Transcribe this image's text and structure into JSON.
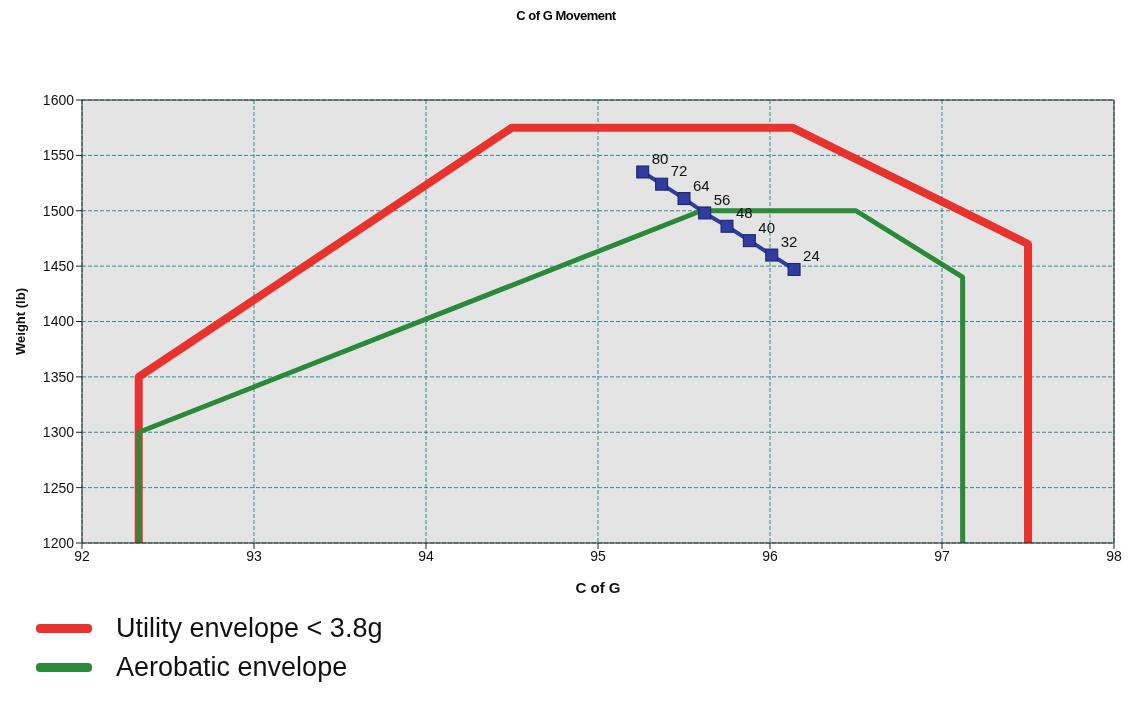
{
  "chart_data": {
    "type": "line",
    "title": "C of G Movement",
    "xlabel": "C of G",
    "ylabel": "Weight (lb)",
    "xlim": [
      92,
      98
    ],
    "xticks": [
      92,
      93,
      94,
      95,
      96,
      97,
      98
    ],
    "ylim": [
      1200,
      1600
    ],
    "yticks": [
      1200,
      1250,
      1300,
      1350,
      1400,
      1450,
      1500,
      1550,
      1600
    ],
    "grid": true,
    "legend": "bottom left",
    "marker": "none",
    "line_style": "solid",
    "series": [
      {
        "name": "Utility envelope < 3.8g",
        "color": "#e8322e",
        "x": [
          92.33,
          92.33,
          94.5,
          96.13,
          97.5,
          97.5
        ],
        "values": [
          1200,
          1350,
          1575,
          1575,
          1470,
          1200
        ]
      },
      {
        "name": "Aerobatic envelope",
        "color": "#2a8a3a",
        "x": [
          92.33,
          92.33,
          95.6,
          96.5,
          97.12,
          97.12
        ],
        "values": [
          1200,
          1300,
          1500,
          1500,
          1440,
          1200
        ]
      },
      {
        "color": "#2e3d9e",
        "marker": "square",
        "x": [
          95.26,
          95.37,
          95.5,
          95.62,
          95.75,
          95.88,
          96.01,
          96.14
        ],
        "values": [
          1535,
          1524,
          1511,
          1498,
          1486,
          1473,
          1460,
          1447
        ]
      }
    ],
    "annotations": [
      {
        "text": "80",
        "x": 95.26,
        "y": 1535
      },
      {
        "text": "72",
        "x": 95.37,
        "y": 1524
      },
      {
        "text": "64",
        "x": 95.5,
        "y": 1511
      },
      {
        "text": "56",
        "x": 95.62,
        "y": 1498
      },
      {
        "text": "48",
        "x": 95.75,
        "y": 1486
      },
      {
        "text": "40",
        "x": 95.88,
        "y": 1473
      },
      {
        "text": "32",
        "x": 96.01,
        "y": 1460
      },
      {
        "text": "24",
        "x": 96.14,
        "y": 1447
      }
    ]
  }
}
